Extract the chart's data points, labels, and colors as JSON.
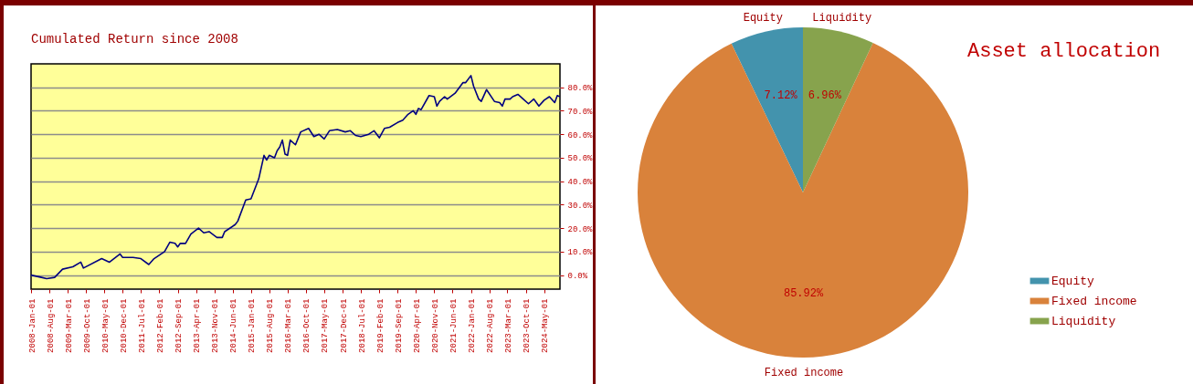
{
  "chart_data": [
    {
      "type": "line",
      "title": "Cumulated Return since 2008",
      "x": [
        "2008-01",
        "2008-05",
        "2008-07",
        "2008-10",
        "2009-01",
        "2009-05",
        "2009-08",
        "2009-09",
        "2010-04",
        "2010-07",
        "2010-11",
        "2010-12",
        "2011-04",
        "2011-07",
        "2011-10",
        "2011-12",
        "2012-04",
        "2012-06",
        "2012-08",
        "2012-09",
        "2012-10",
        "2012-12",
        "2013-02",
        "2013-05",
        "2013-07",
        "2013-09",
        "2013-12",
        "2014-02",
        "2014-03",
        "2014-07",
        "2014-08",
        "2014-11",
        "2015-01",
        "2015-04",
        "2015-06",
        "2015-07",
        "2015-08",
        "2015-10",
        "2015-11",
        "2015-12",
        "2016-01",
        "2016-02",
        "2016-03",
        "2016-04",
        "2016-06",
        "2016-08",
        "2016-11",
        "2017-01",
        "2017-03",
        "2017-05",
        "2017-07",
        "2017-10",
        "2018-01",
        "2018-03",
        "2018-05",
        "2018-07",
        "2018-10",
        "2018-12",
        "2019-02",
        "2019-04",
        "2019-06",
        "2019-09",
        "2019-11",
        "2020-01",
        "2020-03",
        "2020-04",
        "2020-05",
        "2020-06",
        "2020-09",
        "2020-11",
        "2020-12",
        "2021-01",
        "2021-03",
        "2021-04",
        "2021-07",
        "2021-10",
        "2021-11",
        "2022-01",
        "2022-02",
        "2022-04",
        "2022-05",
        "2022-07",
        "2022-10",
        "2022-12",
        "2023-01",
        "2023-02",
        "2023-04",
        "2023-05",
        "2023-07",
        "2023-09",
        "2023-11",
        "2024-01",
        "2024-03",
        "2024-05",
        "2024-07",
        "2024-09",
        "2024-10",
        "2024-11"
      ],
      "series": [
        {
          "color": "#000080",
          "values": [
            0,
            -1,
            -1.5,
            -1,
            2.5,
            3.5,
            5.5,
            3,
            7,
            5.5,
            9,
            7.5,
            7.5,
            7,
            4.5,
            7,
            10,
            14,
            13.5,
            12,
            13.5,
            13.5,
            17.5,
            20,
            18,
            18.5,
            16,
            16,
            18.5,
            21.5,
            23,
            32,
            32.5,
            41,
            51,
            49,
            51,
            50,
            53,
            54.5,
            57.5,
            51.5,
            51,
            57.5,
            55.5,
            61,
            62.5,
            59,
            60,
            58,
            61.5,
            62,
            61,
            61.5,
            59.5,
            59,
            60,
            61.5,
            58.5,
            62.5,
            63,
            65,
            66,
            68.5,
            70,
            68.5,
            71,
            70.5,
            76.5,
            76,
            72,
            74,
            76,
            75,
            77.5,
            82,
            82,
            85,
            80.5,
            75,
            74,
            79,
            74,
            73.5,
            72,
            75,
            75,
            76,
            77,
            75,
            73,
            75,
            72,
            74.5,
            76,
            73.5,
            76.5,
            76
          ]
        }
      ],
      "xlim": [
        "2008-01",
        "2024-11"
      ],
      "xticks": [
        {
          "value": "2008-01-01",
          "label": "2008-Jan-01"
        },
        {
          "value": "2008-08-01",
          "label": "2008-Aug-01"
        },
        {
          "value": "2009-03-01",
          "label": "2009-Mar-01"
        },
        {
          "value": "2009-10-01",
          "label": "2009-Oct-01"
        },
        {
          "value": "2010-05-01",
          "label": "2010-May-01"
        },
        {
          "value": "2010-12-01",
          "label": "2010-Dec-01"
        },
        {
          "value": "2011-07-01",
          "label": "2011-Jul-01"
        },
        {
          "value": "2012-02-01",
          "label": "2012-Feb-01"
        },
        {
          "value": "2012-09-01",
          "label": "2012-Sep-01"
        },
        {
          "value": "2013-04-01",
          "label": "2013-Apr-01"
        },
        {
          "value": "2013-11-01",
          "label": "2013-Nov-01"
        },
        {
          "value": "2014-06-01",
          "label": "2014-Jun-01"
        },
        {
          "value": "2015-01-01",
          "label": "2015-Jan-01"
        },
        {
          "value": "2015-08-01",
          "label": "2015-Aug-01"
        },
        {
          "value": "2016-03-01",
          "label": "2016-Mar-01"
        },
        {
          "value": "2016-10-01",
          "label": "2016-Oct-01"
        },
        {
          "value": "2017-05-01",
          "label": "2017-May-01"
        },
        {
          "value": "2017-12-01",
          "label": "2017-Dec-01"
        },
        {
          "value": "2018-07-01",
          "label": "2018-Jul-01"
        },
        {
          "value": "2019-02-01",
          "label": "2019-Feb-01"
        },
        {
          "value": "2019-09-01",
          "label": "2019-Sep-01"
        },
        {
          "value": "2020-04-01",
          "label": "2020-Apr-01"
        },
        {
          "value": "2020-11-01",
          "label": "2020-Nov-01"
        },
        {
          "value": "2021-06-01",
          "label": "2021-Jun-01"
        },
        {
          "value": "2022-01-01",
          "label": "2022-Jan-01"
        },
        {
          "value": "2022-08-01",
          "label": "2022-Aug-01"
        },
        {
          "value": "2023-03-01",
          "label": "2023-Mar-01"
        },
        {
          "value": "2023-10-01",
          "label": "2023-Oct-01"
        },
        {
          "value": "2024-05-01",
          "label": "2024-May-01"
        }
      ],
      "ylim": [
        -6,
        90
      ],
      "yticks": [
        {
          "value": 0,
          "label": "0.0%"
        },
        {
          "value": 10,
          "label": "10.0%"
        },
        {
          "value": 20,
          "label": "20.0%"
        },
        {
          "value": 30,
          "label": "30.0%"
        },
        {
          "value": 40,
          "label": "40.0%"
        },
        {
          "value": 50,
          "label": "50.0%"
        },
        {
          "value": 60,
          "label": "60.0%"
        },
        {
          "value": 70,
          "label": "70.0%"
        },
        {
          "value": 80,
          "label": "80.0%"
        }
      ],
      "grid": "y",
      "marker": "none",
      "line_style": "solid"
    },
    {
      "type": "pie",
      "title": "Asset allocation",
      "categories": [
        "Equity",
        "Fixed income",
        "Liquidity"
      ],
      "values": [
        7.12,
        85.92,
        6.96
      ],
      "colors": [
        "#4393ad",
        "#d9823b",
        "#87a34d"
      ],
      "value_labels": [
        "7.12%",
        "85.92%",
        "6.96%"
      ],
      "legend": "right"
    }
  ]
}
